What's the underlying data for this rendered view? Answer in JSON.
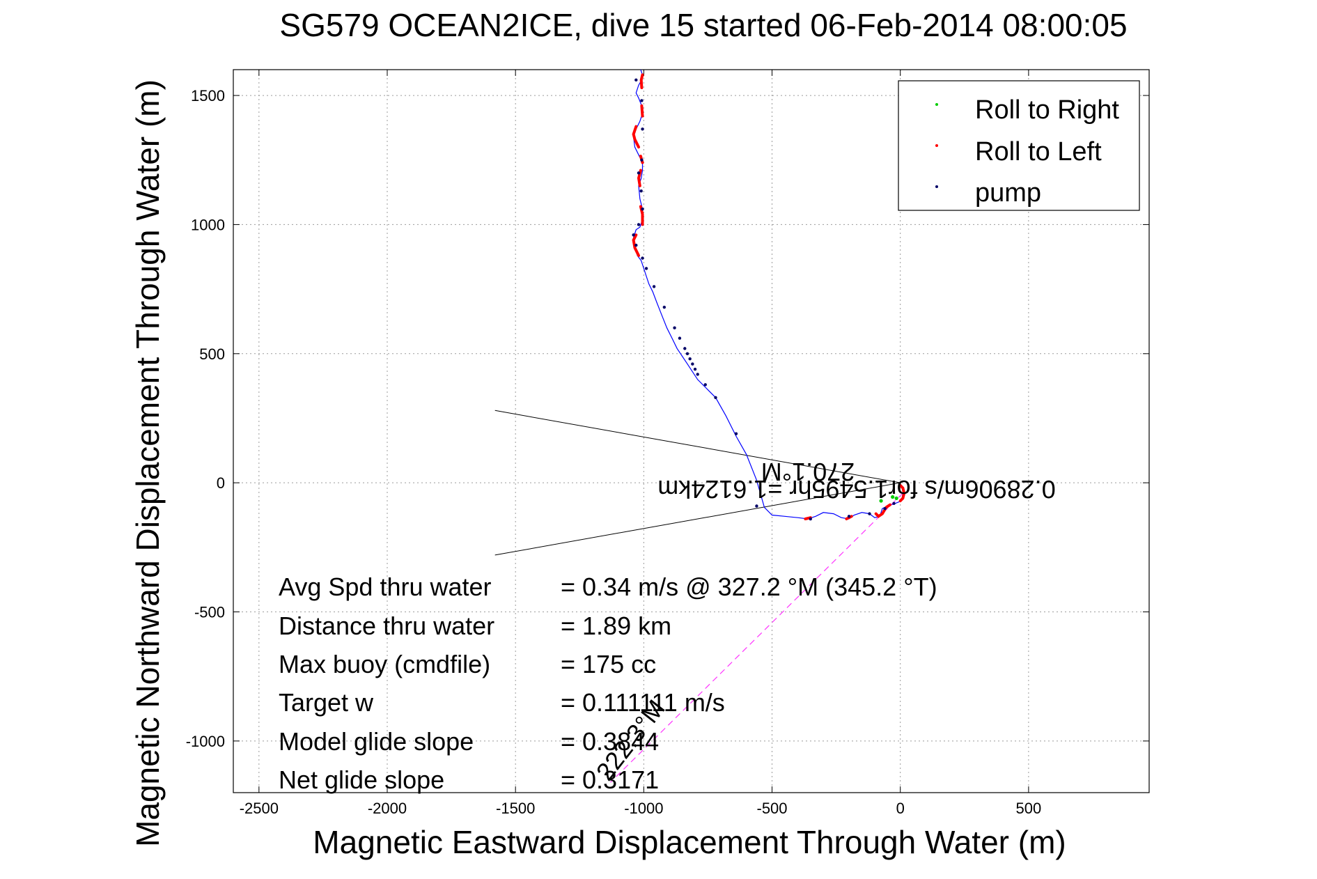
{
  "chart_data": {
    "type": "line",
    "title": "SG579 OCEAN2ICE, dive 15 started 06-Feb-2014 08:00:05",
    "xlabel": "Magnetic Eastward Displacement Through Water (m)",
    "ylabel": "Magnetic Northward Displacement Through Water (m)",
    "xlim": [
      -2600,
      970
    ],
    "ylim": [
      -1200,
      1600
    ],
    "xticks": [
      -2500,
      -2000,
      -1500,
      -1000,
      -500,
      0,
      500
    ],
    "yticks": [
      -1000,
      -500,
      0,
      500,
      1000,
      1500
    ],
    "grid": true,
    "legend_position": "top-right",
    "legend": [
      {
        "label": "Roll to Right",
        "color": "#00cc00"
      },
      {
        "label": "Roll to Left",
        "color": "#ff0000"
      },
      {
        "label": "pump",
        "color": "#000066"
      }
    ],
    "series": [
      {
        "kind": "track",
        "color": "#0000ff",
        "x": [
          10,
          5,
          -20,
          -35,
          -50,
          -70,
          -80,
          -100,
          -120,
          -150,
          -180,
          -200,
          -230,
          -260,
          -300,
          -330,
          -360,
          -400,
          -450,
          -500,
          -530,
          -560,
          -600,
          -640,
          -680,
          -720,
          -760,
          -790,
          -810,
          -830,
          -850,
          -870,
          -890,
          -910,
          -930,
          -950,
          -965,
          -980,
          -990,
          -1000,
          -1010,
          -1025,
          -1035,
          -1040,
          -1030,
          -1015,
          -1005,
          -1005,
          -1015,
          -1020,
          -1010,
          -1005,
          -1005,
          -1020,
          -1035,
          -1040,
          -1030,
          -1015,
          -1005,
          -1008,
          -1020,
          -1030,
          -1020,
          -1008,
          -1005,
          -1012
        ],
        "y": [
          -40,
          -70,
          -80,
          -85,
          -90,
          -100,
          -130,
          -135,
          -120,
          -115,
          -125,
          -140,
          -135,
          -120,
          -115,
          -130,
          -140,
          -135,
          -130,
          -125,
          -95,
          10,
          110,
          180,
          260,
          330,
          370,
          400,
          430,
          460,
          490,
          520,
          560,
          600,
          650,
          700,
          740,
          770,
          800,
          830,
          860,
          880,
          920,
          950,
          980,
          990,
          1020,
          1060,
          1100,
          1150,
          1180,
          1210,
          1240,
          1270,
          1300,
          1340,
          1370,
          1400,
          1430,
          1460,
          1490,
          1510,
          1540,
          1560,
          1580,
          1600
        ]
      },
      {
        "kind": "dive-line",
        "color": "#ff33ff",
        "x": [
          10,
          -1130
        ],
        "y": [
          -40,
          -1160
        ]
      }
    ],
    "wedge": {
      "apex": [
        0,
        0
      ],
      "upper_end": [
        -1580,
        280
      ],
      "lower_end": [
        -1580,
        -280
      ]
    },
    "red_segments": [
      {
        "x": [
          0,
          10,
          15,
          10,
          0
        ],
        "y": [
          -10,
          -20,
          -40,
          -60,
          -70
        ]
      },
      {
        "x": [
          -40,
          -55,
          -70,
          -85,
          -95
        ],
        "y": [
          -85,
          -95,
          -120,
          -130,
          -120
        ]
      },
      {
        "x": [
          -190,
          -210
        ],
        "y": [
          -130,
          -140
        ]
      },
      {
        "x": [
          -350,
          -370
        ],
        "y": [
          -135,
          -140
        ]
      },
      {
        "x": [
          -1020,
          -1035,
          -1040,
          -1030
        ],
        "y": [
          880,
          910,
          940,
          960
        ]
      },
      {
        "x": [
          -1005,
          -1005,
          -1012
        ],
        "y": [
          1000,
          1040,
          1070
        ]
      },
      {
        "x": [
          -1015,
          -1020,
          -1012
        ],
        "y": [
          1150,
          1180,
          1210
        ]
      },
      {
        "x": [
          -1005,
          -1012
        ],
        "y": [
          1240,
          1265
        ]
      },
      {
        "x": [
          -1020,
          -1035,
          -1040,
          -1030
        ],
        "y": [
          1300,
          1330,
          1350,
          1380
        ]
      },
      {
        "x": [
          -1005,
          -1008
        ],
        "y": [
          1420,
          1460
        ]
      },
      {
        "x": [
          -1008,
          -1010,
          -1005
        ],
        "y": [
          1530,
          1560,
          1580
        ]
      }
    ],
    "green_points": {
      "x": [
        -75,
        -30,
        -15
      ],
      "y": [
        -70,
        -55,
        -60
      ]
    },
    "pump_points": {
      "x": [
        -25,
        -60,
        -120,
        -200,
        -350,
        -560,
        -640,
        -720,
        -760,
        -790,
        -800,
        -810,
        -820,
        -830,
        -840,
        -860,
        -880,
        -920,
        -960,
        -990,
        -1005,
        -1030,
        -1040,
        -1020,
        -1005,
        -1010,
        -1020,
        -1008,
        -1005,
        -1008,
        -1030
      ],
      "y": [
        -80,
        -100,
        -120,
        -130,
        -140,
        -90,
        190,
        330,
        380,
        420,
        440,
        460,
        480,
        500,
        520,
        560,
        600,
        680,
        760,
        830,
        870,
        920,
        960,
        1000,
        1060,
        1130,
        1200,
        1250,
        1370,
        1480,
        1560
      ]
    },
    "annotations": {
      "speed": "0.28906m/s for1.5495hr =1.6124km",
      "heading": "270.1°M",
      "dive_heading": "222.3°M"
    },
    "stats": [
      {
        "label": "Avg Spd thru water",
        "value": "=  0.34 m/s @ 327.2 °M (345.2 °T)"
      },
      {
        "label": "Distance thru water",
        "value": "=  1.89 km"
      },
      {
        "label": "Max buoy (cmdfile)",
        "value": "= 175 cc"
      },
      {
        "label": "Target w",
        "value": "= 0.111111 m/s"
      },
      {
        "label": "Model glide slope",
        "value": "= 0.3844"
      },
      {
        "label": "Net glide slope",
        "value": "= 0.3171"
      }
    ]
  }
}
